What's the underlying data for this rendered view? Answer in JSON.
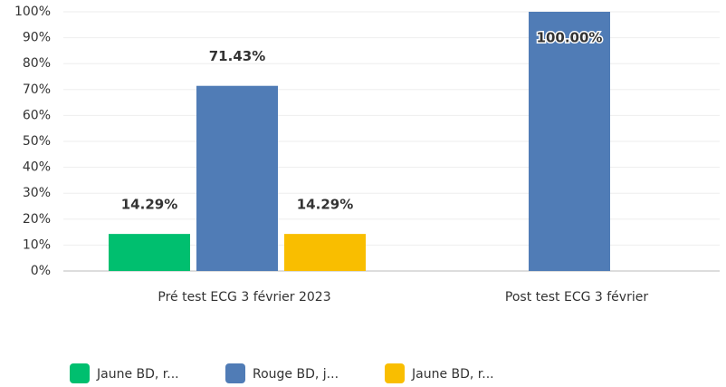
{
  "chart_data": {
    "type": "bar",
    "categories": [
      "Pré test ECG 3 février 2023",
      "Post test ECG 3 février"
    ],
    "series": [
      {
        "name": "Jaune BD, r...",
        "color": "#00bf6f",
        "values": [
          14.29,
          null
        ],
        "value_labels": [
          "14.29%",
          null
        ]
      },
      {
        "name": "Rouge BD, j...",
        "color": "#507cb6",
        "values": [
          71.43,
          100
        ],
        "value_labels": [
          "71.43%",
          "100.00%"
        ]
      },
      {
        "name": "Jaune BD, r...",
        "color": "#f9be00",
        "values": [
          14.29,
          null
        ],
        "value_labels": [
          "14.29%",
          null
        ]
      }
    ],
    "ylim": [
      0,
      100
    ],
    "yticks": [
      {
        "value": 0,
        "label": "0%"
      },
      {
        "value": 10,
        "label": "10%"
      },
      {
        "value": 20,
        "label": "20%"
      },
      {
        "value": 30,
        "label": "30%"
      },
      {
        "value": 40,
        "label": "40%"
      },
      {
        "value": 50,
        "label": "50%"
      },
      {
        "value": 60,
        "label": "60%"
      },
      {
        "value": 70,
        "label": "70%"
      },
      {
        "value": 80,
        "label": "80%"
      },
      {
        "value": 90,
        "label": "90%"
      },
      {
        "value": 100,
        "label": "100%"
      }
    ],
    "grid": true
  }
}
